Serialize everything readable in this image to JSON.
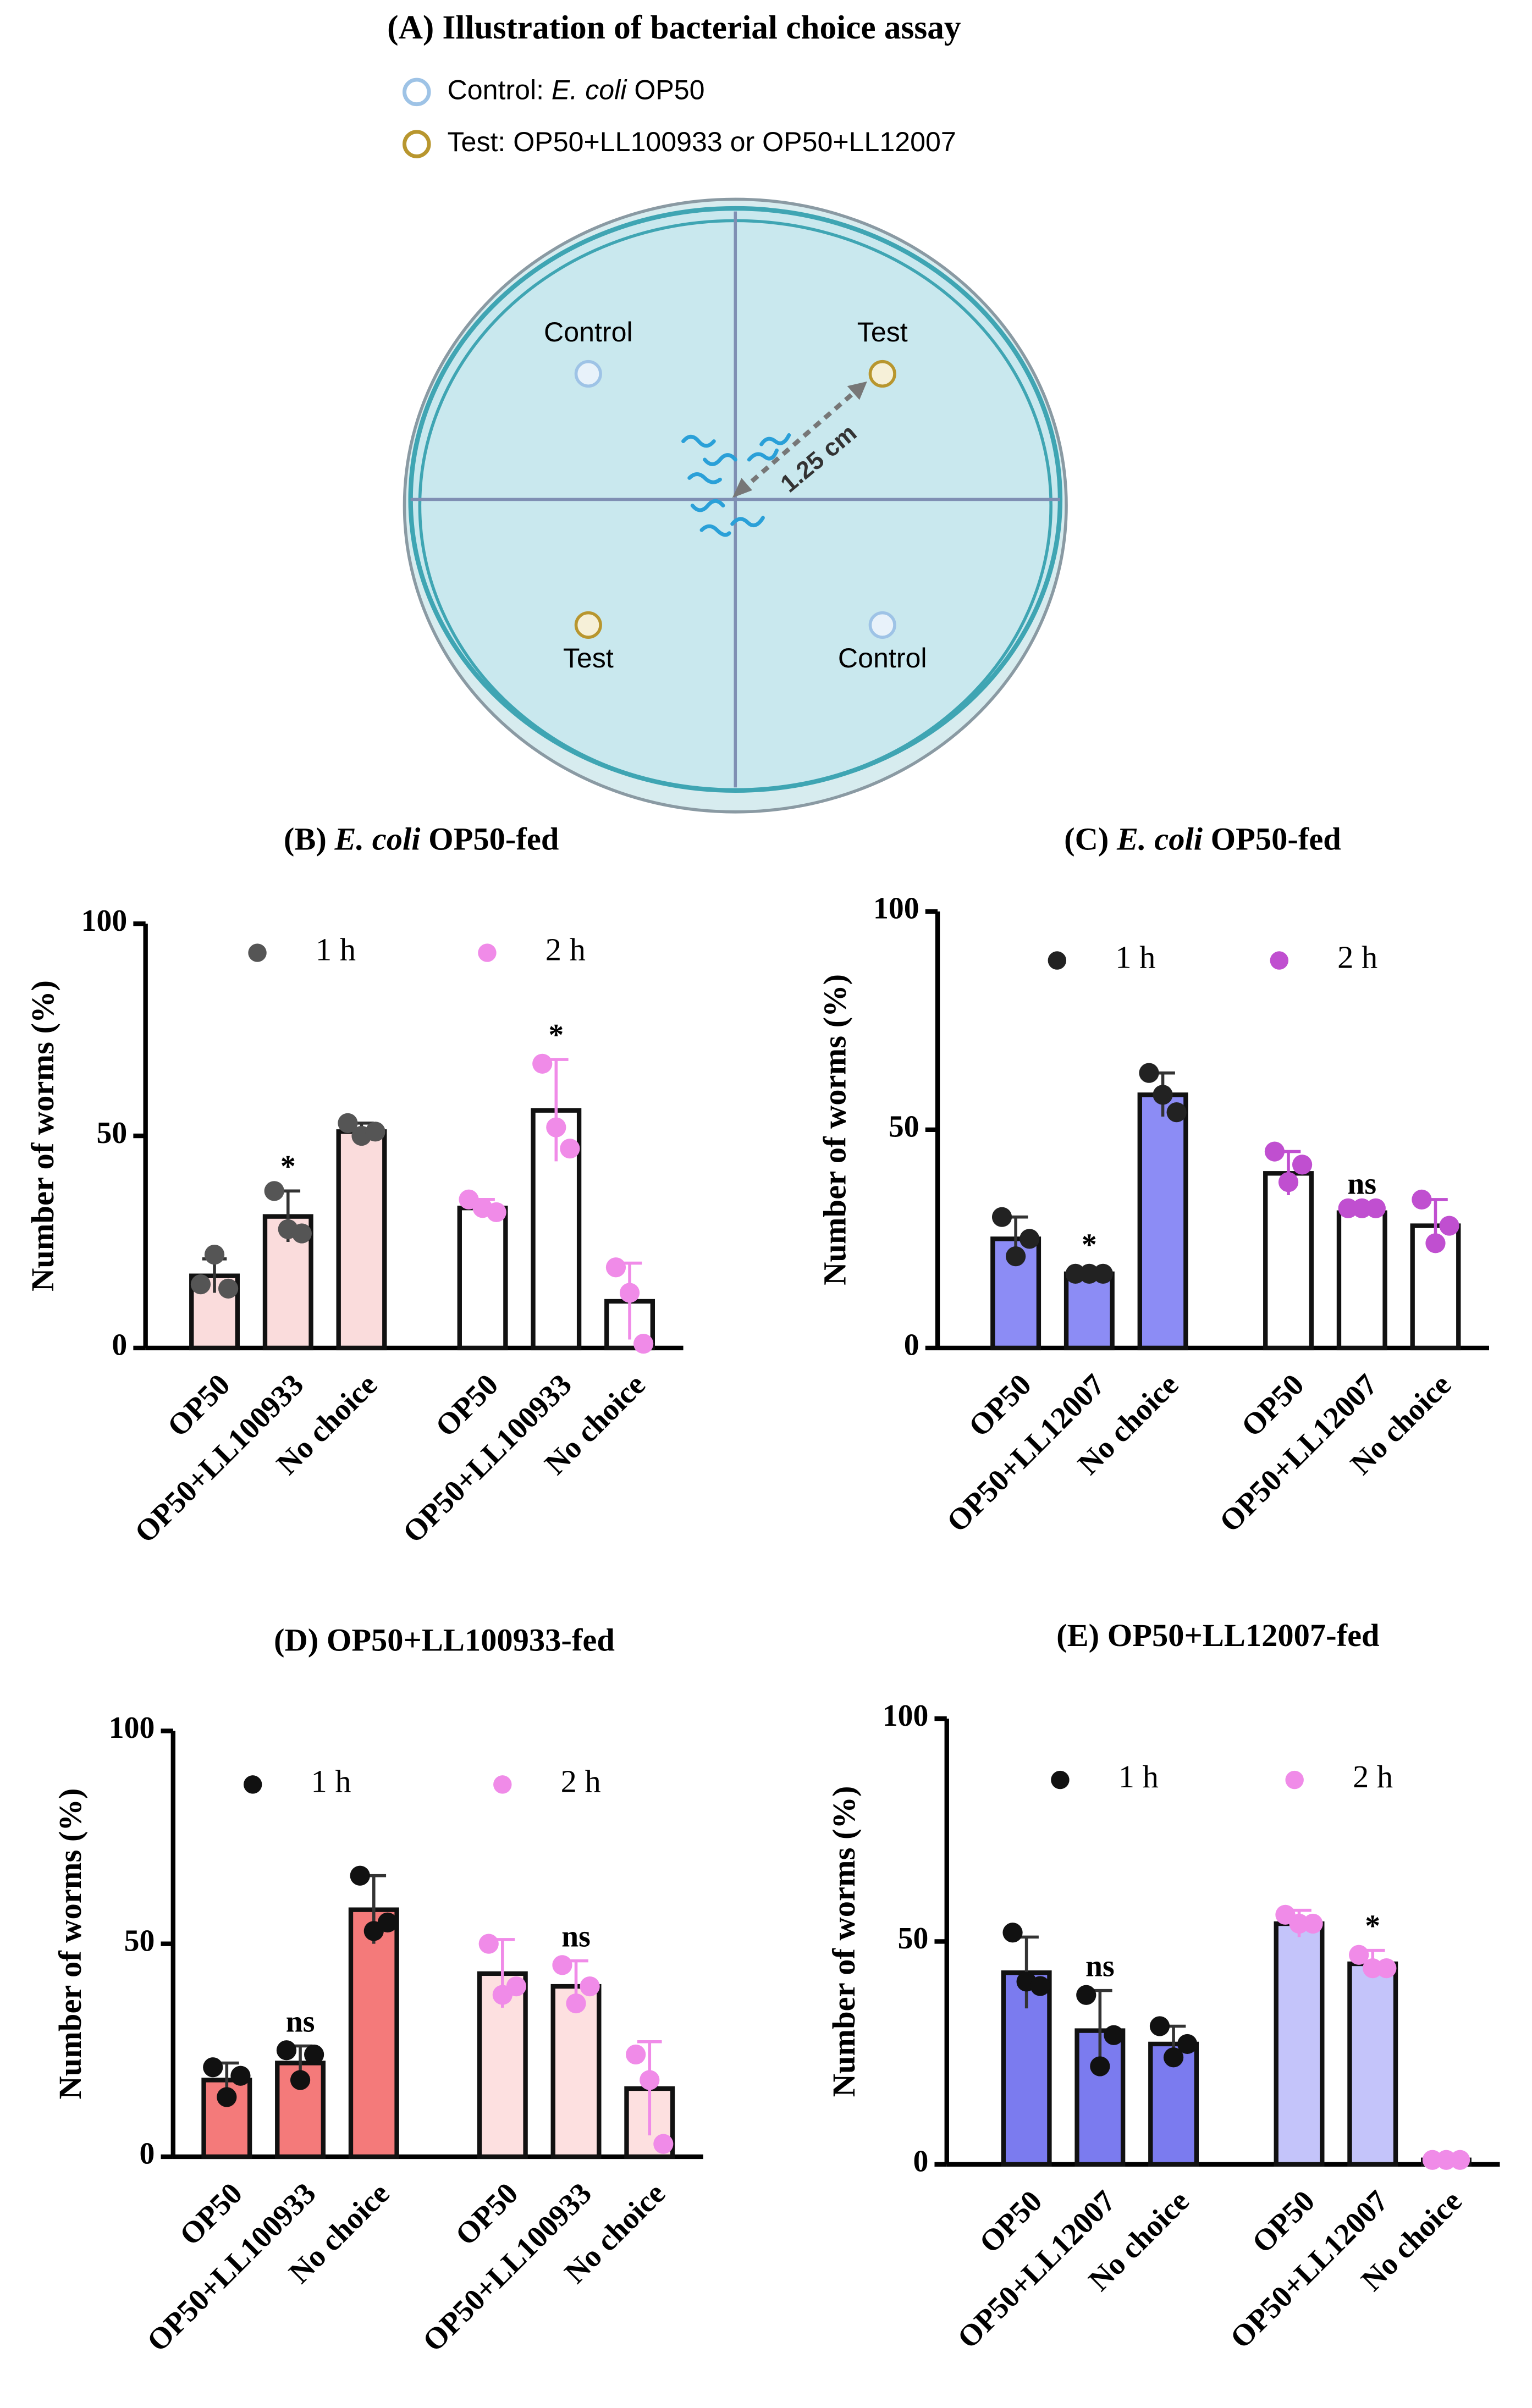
{
  "illustration": {
    "title": "(A)  Illustration of bacterial choice assay",
    "legend": [
      {
        "parts": [
          "Control: ",
          "E. coli",
          " OP50"
        ],
        "color": "#9ec3e6"
      },
      {
        "parts": [
          "Test: OP50+LL100933 or OP50+LL12007"
        ],
        "color": "#b8962e"
      }
    ],
    "labels": [
      "Control",
      "Test",
      "Test",
      "Control"
    ],
    "distance": "1.25 cm"
  },
  "chart_data": [
    {
      "type": "bar",
      "title": [
        "(B) ",
        "E. coli",
        " OP50-fed"
      ],
      "ylabel": "Number of worms (%)",
      "ylim": [
        0,
        100
      ],
      "yticks": [
        0,
        50,
        100
      ],
      "categories": [
        "OP50",
        "OP50+LL100933",
        "No choice"
      ],
      "series": [
        {
          "name": "1 h",
          "color": "#fadcdc",
          "dot_color": "#555555",
          "values": [
            17,
            31,
            51
          ],
          "errors": [
            4,
            6,
            2
          ],
          "points": [
            [
              15,
              22,
              14
            ],
            [
              37,
              28,
              27
            ],
            [
              53,
              50,
              51
            ]
          ],
          "annotations": [
            null,
            "*",
            null
          ]
        },
        {
          "name": "2 h",
          "color": "#ffffff",
          "dot_color": "#f08be8",
          "values": [
            33,
            56,
            11
          ],
          "errors": [
            2,
            12,
            9
          ],
          "points": [
            [
              35,
              33,
              32
            ],
            [
              67,
              52,
              47
            ],
            [
              19,
              13,
              1
            ]
          ],
          "annotations": [
            null,
            "*",
            null
          ]
        }
      ]
    },
    {
      "type": "bar",
      "title": [
        "(C) ",
        "E. coli",
        " OP50-fed"
      ],
      "ylabel": "Number of worms (%)",
      "ylim": [
        0,
        100
      ],
      "yticks": [
        0,
        50,
        100
      ],
      "categories": [
        "OP50",
        "OP50+LL12007",
        "No choice"
      ],
      "series": [
        {
          "name": "1 h",
          "color": "#8c8cf5",
          "dot_color": "#222222",
          "values": [
            25,
            17,
            58
          ],
          "errors": [
            5,
            1,
            5
          ],
          "points": [
            [
              30,
              21,
              25
            ],
            [
              17,
              17,
              17
            ],
            [
              63,
              58,
              54
            ]
          ],
          "annotations": [
            null,
            "*",
            null
          ]
        },
        {
          "name": "2 h",
          "color": "#ffffff",
          "dot_color": "#c04fd0",
          "values": [
            40,
            31,
            28
          ],
          "errors": [
            5,
            1,
            6
          ],
          "points": [
            [
              45,
              38,
              42
            ],
            [
              32,
              32,
              32
            ],
            [
              34,
              24,
              28
            ]
          ],
          "annotations": [
            null,
            "ns",
            null
          ]
        }
      ]
    },
    {
      "type": "bar",
      "title": [
        "(D) OP50+LL100933-fed"
      ],
      "ylabel": "Number of worms (%)",
      "ylim": [
        0,
        100
      ],
      "yticks": [
        0,
        50,
        100
      ],
      "categories": [
        "OP50",
        "OP50+LL100933",
        "No choice"
      ],
      "series": [
        {
          "name": "1 h",
          "color": "#f47a7a",
          "dot_color": "#111111",
          "values": [
            18,
            22,
            58
          ],
          "errors": [
            4,
            4,
            8
          ],
          "points": [
            [
              21,
              14,
              19
            ],
            [
              25,
              18,
              24
            ],
            [
              66,
              53,
              55
            ]
          ],
          "annotations": [
            null,
            "ns",
            null
          ]
        },
        {
          "name": "2 h",
          "color": "#fde0e0",
          "dot_color": "#f08be8",
          "values": [
            43,
            40,
            16
          ],
          "errors": [
            8,
            6,
            11
          ],
          "points": [
            [
              50,
              38,
              40
            ],
            [
              45,
              36,
              40
            ],
            [
              24,
              18,
              3
            ]
          ],
          "annotations": [
            null,
            "ns",
            null
          ]
        }
      ]
    },
    {
      "type": "bar",
      "title": [
        "(E) OP50+LL12007-fed"
      ],
      "ylabel": "Number of worms (%)",
      "ylim": [
        0,
        100
      ],
      "yticks": [
        0,
        50,
        100
      ],
      "categories": [
        "OP50",
        "OP50+LL12007",
        "No choice"
      ],
      "series": [
        {
          "name": "1 h",
          "color": "#7b7bef",
          "dot_color": "#111111",
          "values": [
            43,
            30,
            27
          ],
          "errors": [
            8,
            9,
            4
          ],
          "points": [
            [
              52,
              41,
              40
            ],
            [
              38,
              22,
              29
            ],
            [
              31,
              24,
              27
            ]
          ],
          "annotations": [
            null,
            "ns",
            null
          ]
        },
        {
          "name": "2 h",
          "color": "#c4c4fa",
          "dot_color": "#f08be8",
          "values": [
            54,
            45,
            1
          ],
          "errors": [
            3,
            3,
            0
          ],
          "points": [
            [
              56,
              54,
              54
            ],
            [
              47,
              44,
              44
            ],
            [
              1,
              1,
              1
            ]
          ],
          "annotations": [
            null,
            "*",
            null
          ]
        }
      ]
    }
  ]
}
